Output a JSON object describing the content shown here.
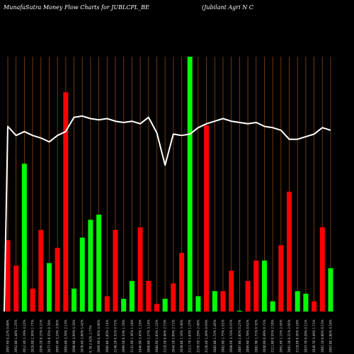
{
  "chart_data": {
    "type": "bar",
    "title_left": "MunafaSutra  Money Flow  Charts for JUBLCPL_BE",
    "title_right": "(Jubilant Agri   N   C",
    "grid": "vertical",
    "colors": {
      "background": "#000000",
      "grid": "#8B4513",
      "up": "#00FF00",
      "down": "#FF0000",
      "line": "#FFFFFF"
    },
    "categories": [
      "2067.60 0.22% 0.89%",
      "2062.80 1.48% 1.25%",
      "2012.40 1.19% 4.22%",
      "2026.00 2.30% 1.77%",
      "2056.20 0.15% 0.21%",
      "2077.50 0.35% 0.70%",
      "2097.40 3.24% 3.95%",
      "2093.60 3.78% 2.13%",
      "2098.90 3.69% 4.33%",
      "2078.60 2.00% 5.42%",
      "6.78 2.42% 1.77%",
      "2069.90 0.36% 4.96%",
      "2085.80 1.85% 2.14%",
      "2148.20 0.31% 0.71%",
      "2099.50 0.33% 1.70%",
      "2131.60 1.36% 1.18%",
      "2046.90 3.45% 1.16%",
      "2000.80 2.27% 3.14%",
      "2084.60 1.83% 1.22%",
      "2118.50 0.40% 2.73%",
      "2044.20 2.09% 2.71%",
      "2048.80 1.16% 3.40%",
      "2111.70 1.83% 1.27%",
      "2156.50 1.29% 2.40%",
      "2128.40 1.20% 0.93%",
      "2085.80 1.72% 1.85%",
      "2082.60 1.75% 1.61%",
      "2068.60 3.74% 0.47%",
      "2087.80 2.85% 0.27%",
      "2099.60 1.78% 0.62%",
      "2081.90 1.71% 0.32%",
      "2040.00 0.49% 0.71%",
      "2111.80 0.55% 2.10%",
      "2061.60 1.15% 2.45%",
      "2091.30 0.21% 2.95%",
      "2118.00 0.26% 0.10%",
      "2057.70 0.29% 0.11%",
      "2046.70 3.49% 1.71%",
      "2081.10 0.80% 0.13%",
      "2067.80 1.80% 4.10%"
    ],
    "series": [
      {
        "values": [
          {
            "v": 0.28,
            "c": "down"
          },
          {
            "v": 0.18,
            "c": "down"
          },
          {
            "v": 0.58,
            "c": "up"
          },
          {
            "v": 0.09,
            "c": "down"
          },
          {
            "v": 0.32,
            "c": "down"
          },
          {
            "v": 0.19,
            "c": "up"
          },
          {
            "v": 0.25,
            "c": "down"
          },
          {
            "v": 0.86,
            "c": "down"
          },
          {
            "v": 0.09,
            "c": "up"
          },
          {
            "v": 0.29,
            "c": "up"
          },
          {
            "v": 0.36,
            "c": "up"
          },
          {
            "v": 0.38,
            "c": "up"
          },
          {
            "v": 0.06,
            "c": "down"
          },
          {
            "v": 0.32,
            "c": "down"
          },
          {
            "v": 0.05,
            "c": "up"
          },
          {
            "v": 0.12,
            "c": "up"
          },
          {
            "v": 0.33,
            "c": "down"
          },
          {
            "v": 0.12,
            "c": "down"
          },
          {
            "v": 0.03,
            "c": "down"
          },
          {
            "v": 0.05,
            "c": "up"
          },
          {
            "v": 0.11,
            "c": "down"
          },
          {
            "v": 0.23,
            "c": "down"
          },
          {
            "v": 1.0,
            "c": "up"
          },
          {
            "v": 0.06,
            "c": "up"
          },
          {
            "v": 0.73,
            "c": "down"
          },
          {
            "v": 0.08,
            "c": "up"
          },
          {
            "v": 0.08,
            "c": "down"
          },
          {
            "v": 0.16,
            "c": "down"
          },
          {
            "v": 0.003,
            "c": "up"
          },
          {
            "v": 0.12,
            "c": "down"
          },
          {
            "v": 0.2,
            "c": "down"
          },
          {
            "v": 0.2,
            "c": "up"
          },
          {
            "v": 0.04,
            "c": "up"
          },
          {
            "v": 0.26,
            "c": "down"
          },
          {
            "v": 0.47,
            "c": "down"
          },
          {
            "v": 0.08,
            "c": "up"
          },
          {
            "v": 0.07,
            "c": "up"
          },
          {
            "v": 0.04,
            "c": "down"
          },
          {
            "v": 0.33,
            "c": "down"
          },
          {
            "v": 0.17,
            "c": "up"
          }
        ]
      }
    ],
    "line": [
      0.215,
      0.25,
      0.235,
      0.25,
      0.26,
      0.275,
      0.25,
      0.235,
      0.18,
      0.175,
      0.185,
      0.19,
      0.185,
      0.195,
      0.2,
      0.195,
      0.205,
      0.18,
      0.24,
      0.365,
      0.245,
      0.25,
      0.245,
      0.22,
      0.205,
      0.195,
      0.185,
      0.195,
      0.2,
      0.205,
      0.2,
      0.215,
      0.22,
      0.23,
      0.265,
      0.265,
      0.255,
      0.245,
      0.22,
      0.23
    ]
  }
}
